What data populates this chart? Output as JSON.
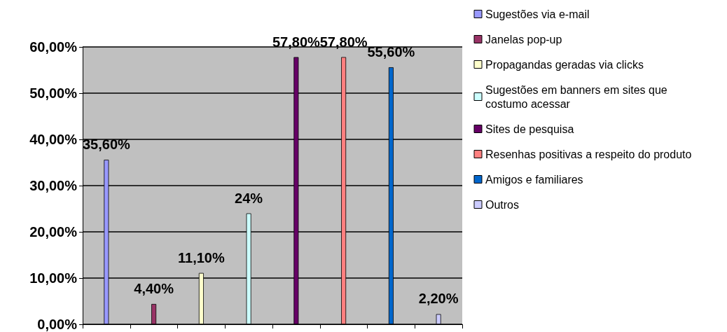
{
  "chart_data": {
    "type": "bar",
    "categories": [
      null,
      null,
      null,
      null,
      null,
      null,
      null,
      null
    ],
    "series": [
      {
        "name": "Sugestões via e-mail",
        "color": "#9999ff",
        "values": [
          35.6,
          null,
          null,
          null,
          null,
          null,
          null,
          null
        ],
        "value_labels": [
          "35,60%",
          null,
          null,
          null,
          null,
          null,
          null,
          null
        ]
      },
      {
        "name": "Janelas pop-up",
        "color": "#993366",
        "values": [
          null,
          4.4,
          null,
          null,
          null,
          null,
          null,
          null
        ],
        "value_labels": [
          null,
          "4,40%",
          null,
          null,
          null,
          null,
          null,
          null
        ]
      },
      {
        "name": "Propagandas geradas via clicks",
        "color": "#ffffcc",
        "values": [
          null,
          null,
          11.1,
          null,
          null,
          null,
          null,
          null
        ],
        "value_labels": [
          null,
          null,
          "11,10%",
          null,
          null,
          null,
          null,
          null
        ]
      },
      {
        "name": "Sugestões em banners em sites que costumo acessar",
        "color": "#ccffff",
        "values": [
          null,
          null,
          null,
          24,
          null,
          null,
          null,
          null
        ],
        "value_labels": [
          null,
          null,
          null,
          "24%",
          null,
          null,
          null,
          null
        ]
      },
      {
        "name": "Sites de pesquisa",
        "color": "#660066",
        "values": [
          null,
          null,
          null,
          null,
          57.8,
          null,
          null,
          null
        ],
        "value_labels": [
          null,
          null,
          null,
          null,
          "57,80%",
          null,
          null,
          null
        ]
      },
      {
        "name": "Resenhas positivas a respeito do produto",
        "color": "#ff8080",
        "values": [
          null,
          null,
          null,
          null,
          null,
          57.8,
          null,
          null
        ],
        "value_labels": [
          null,
          null,
          null,
          null,
          null,
          "57,80%",
          null,
          null
        ]
      },
      {
        "name": "Amigos e familiares",
        "color": "#0066cc",
        "values": [
          null,
          null,
          null,
          null,
          null,
          null,
          55.6,
          null
        ],
        "value_labels": [
          null,
          null,
          null,
          null,
          null,
          null,
          "55,60%",
          null
        ]
      },
      {
        "name": "Outros",
        "color": "#ccccff",
        "values": [
          null,
          null,
          null,
          null,
          null,
          null,
          null,
          2.2
        ],
        "value_labels": [
          null,
          null,
          null,
          null,
          null,
          null,
          null,
          "2,20%"
        ]
      }
    ],
    "ylim": [
      0,
      60
    ],
    "yticks": [
      {
        "value": 0,
        "label": "0,00%"
      },
      {
        "value": 10,
        "label": "10,00%"
      },
      {
        "value": 20,
        "label": "20,00%"
      },
      {
        "value": 30,
        "label": "30,00%"
      },
      {
        "value": 40,
        "label": "40,00%"
      },
      {
        "value": 50,
        "label": "50,00%"
      },
      {
        "value": 60,
        "label": "60,00%"
      }
    ],
    "grid": "y",
    "legend": "right"
  }
}
